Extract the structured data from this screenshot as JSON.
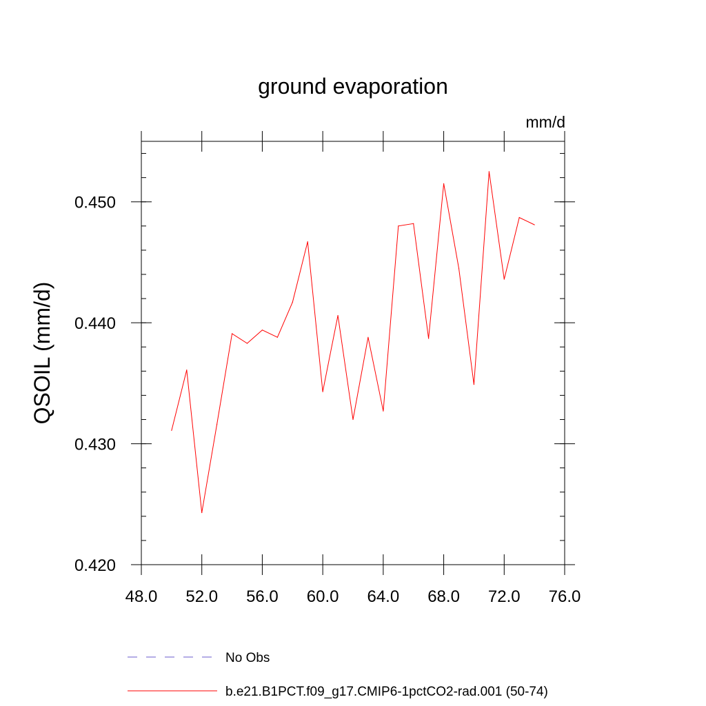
{
  "chart_data": {
    "type": "line",
    "title": "ground evaporation",
    "units": "mm/d",
    "ylabel": "QSOIL  (mm/d)",
    "xlabel": "",
    "xlim": [
      48,
      76
    ],
    "ylim": [
      0.42,
      0.455
    ],
    "xticks": [
      "48.0",
      "52.0",
      "56.0",
      "60.0",
      "64.0",
      "68.0",
      "72.0",
      "76.0"
    ],
    "yticks": [
      "0.420",
      "0.430",
      "0.440",
      "0.450"
    ],
    "series": [
      {
        "name": "b.e21.B1PCT.f09_g17.CMIP6-1pctCO2-rad.001 (50-74)",
        "color": "#ff0000",
        "x": [
          50,
          51,
          52,
          53,
          54,
          55,
          56,
          57,
          58,
          59,
          60,
          61,
          62,
          63,
          64,
          65,
          66,
          67,
          68,
          69,
          70,
          71,
          72,
          73,
          74
        ],
        "y": [
          0.4311,
          0.4361,
          0.4243,
          0.4316,
          0.4391,
          0.4383,
          0.4394,
          0.4388,
          0.4417,
          0.4467,
          0.4343,
          0.4406,
          0.432,
          0.4388,
          0.4327,
          0.448,
          0.4482,
          0.4387,
          0.4515,
          0.4445,
          0.4349,
          0.4525,
          0.4436,
          0.4487,
          0.4481
        ]
      }
    ],
    "legend": {
      "position": "bottom",
      "entries": [
        {
          "label": "No Obs",
          "color": "#6a5acd",
          "style": "dashed"
        },
        {
          "label": "b.e21.B1PCT.f09_g17.CMIP6-1pctCO2-rad.001 (50-74)",
          "color": "#ff0000",
          "style": "solid"
        }
      ]
    }
  }
}
